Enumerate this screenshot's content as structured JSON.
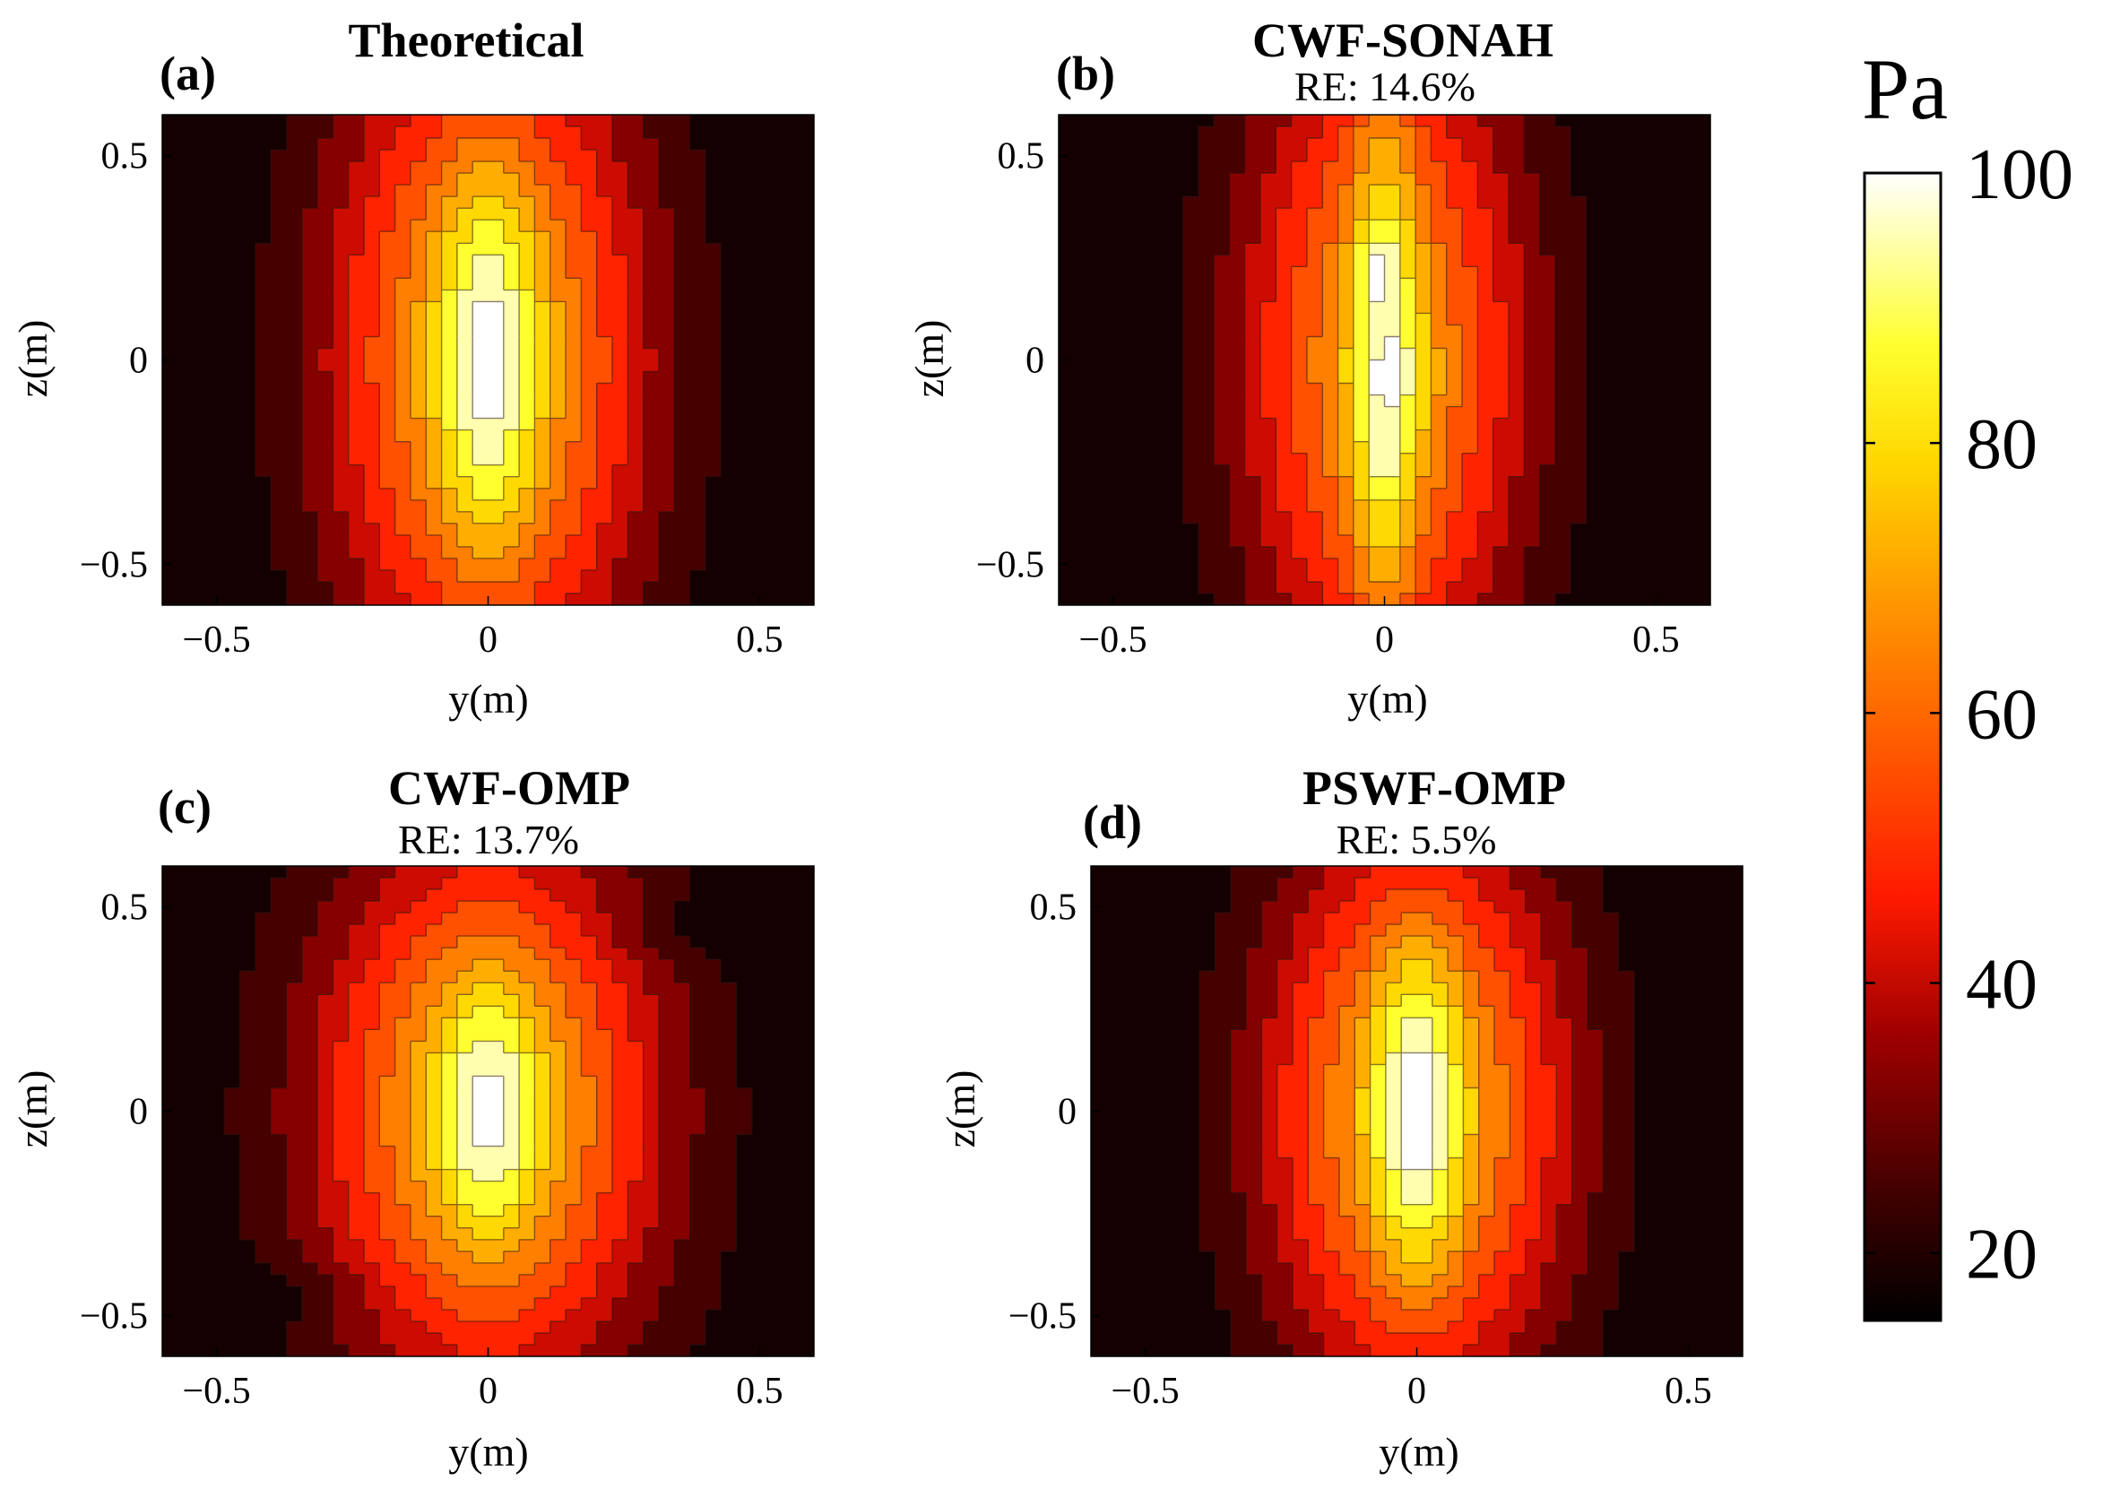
{
  "chart_data": {
    "type": "contour",
    "colormap": "hot",
    "colorbar": {
      "unit": "Pa",
      "min": 15,
      "max": 100,
      "ticks": [
        20,
        40,
        60,
        80,
        100
      ]
    },
    "contour_levels": [
      15,
      22,
      30,
      38,
      45,
      53,
      61,
      69,
      76,
      84,
      92,
      100
    ],
    "panels": [
      {
        "letter": "(a)",
        "title": "Theoretical",
        "subtitle": "",
        "variant": "theoretical",
        "xlabel": "y(m)",
        "ylabel": "z(m)",
        "xlim": [
          -0.6,
          0.6
        ],
        "ylim": [
          -0.6,
          0.6
        ],
        "xticks": [
          -0.5,
          0,
          0.5
        ],
        "yticks": [
          -0.5,
          0,
          0.5
        ],
        "xtick_labels": [
          "−0.5",
          "0",
          "0.5"
        ],
        "ytick_labels": [
          "−0.5",
          "0",
          "0.5"
        ],
        "peak_pa": 100
      },
      {
        "letter": "(b)",
        "title": "CWF-SONAH",
        "subtitle": "RE: 14.6%",
        "variant": "sonah",
        "xlabel": "y(m)",
        "ylabel": "z(m)",
        "xlim": [
          -0.6,
          0.6
        ],
        "ylim": [
          -0.6,
          0.6
        ],
        "xticks": [
          -0.5,
          0,
          0.5
        ],
        "yticks": [
          -0.5,
          0,
          0.5
        ],
        "xtick_labels": [
          "−0.5",
          "0",
          "0.5"
        ],
        "ytick_labels": [
          "−0.5",
          "0",
          "0.5"
        ],
        "peak_pa": 100
      },
      {
        "letter": "(c)",
        "title": "CWF-OMP",
        "subtitle": "RE: 13.7%",
        "variant": "cwf_omp",
        "xlabel": "y(m)",
        "ylabel": "z(m)",
        "xlim": [
          -0.6,
          0.6
        ],
        "ylim": [
          -0.6,
          0.6
        ],
        "xticks": [
          -0.5,
          0,
          0.5
        ],
        "yticks": [
          -0.5,
          0,
          0.5
        ],
        "xtick_labels": [
          "−0.5",
          "0",
          "0.5"
        ],
        "ytick_labels": [
          "−0.5",
          "0",
          "0.5"
        ],
        "peak_pa": 100
      },
      {
        "letter": "(d)",
        "title": "PSWF-OMP",
        "subtitle": "RE: 5.5%",
        "variant": "pswf_omp",
        "xlabel": "y(m)",
        "ylabel": "z(m)",
        "xlim": [
          -0.6,
          0.6
        ],
        "ylim": [
          -0.6,
          0.6
        ],
        "xticks": [
          -0.5,
          0,
          0.5
        ],
        "yticks": [
          -0.5,
          0,
          0.5
        ],
        "xtick_labels": [
          "−0.5",
          "0",
          "0.5"
        ],
        "ytick_labels": [
          "−0.5",
          "0",
          "0.5"
        ],
        "peak_pa": 100
      }
    ]
  }
}
